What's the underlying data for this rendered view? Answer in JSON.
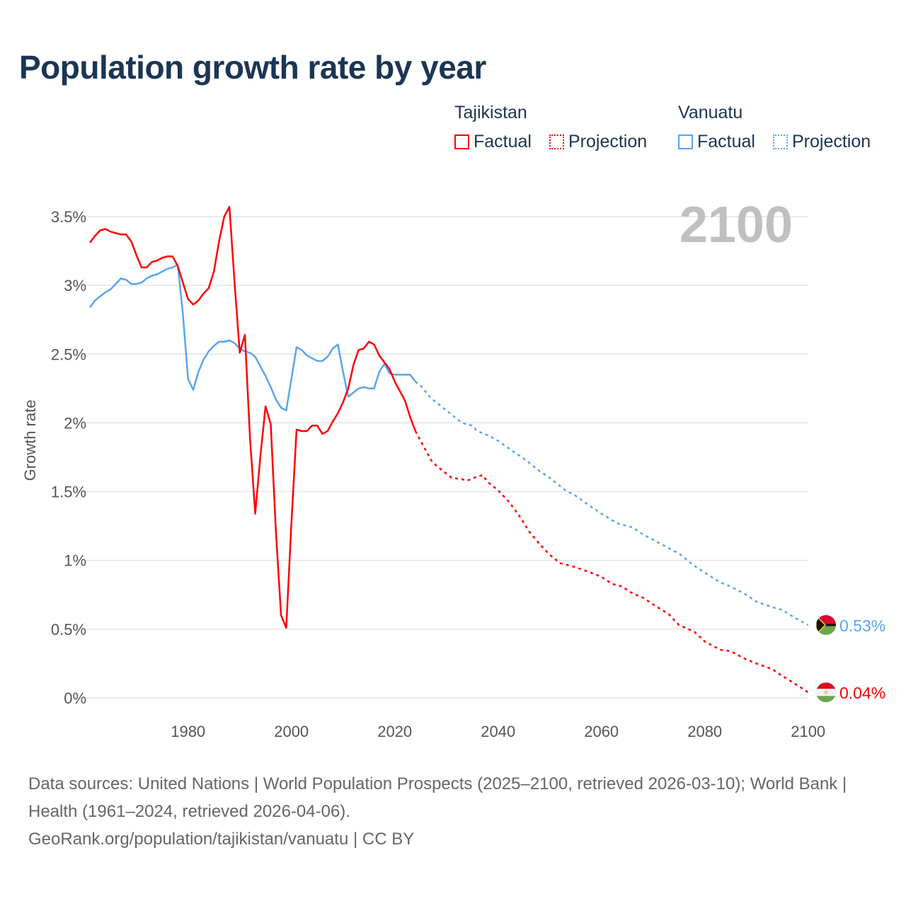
{
  "title": "Population growth rate by year",
  "legend": {
    "groups": [
      {
        "country": "Tajikistan",
        "factual": "Factual",
        "projection": "Projection",
        "color": "#ff0000"
      },
      {
        "country": "Vanuatu",
        "factual": "Factual",
        "projection": "Projection",
        "color": "#5aa5ec"
      }
    ]
  },
  "year_label": "2100",
  "footer": {
    "sources": "Data sources: United Nations | World Population Prospects (2025–2100, retrieved 2026-03-10); World Bank | Health (1961–2024, retrieved 2026-04-06).",
    "link": "GeoRank.org/population/tajikistan/vanuatu | CC BY"
  },
  "chart_data": {
    "type": "line",
    "title": "Population growth rate by year",
    "xlabel": "",
    "ylabel": "Growth rate",
    "xlim": [
      1961,
      2100
    ],
    "ylim": [
      0,
      3.5
    ],
    "x_ticks": [
      1980,
      2000,
      2020,
      2040,
      2060,
      2080,
      2100
    ],
    "x_tick_labels": [
      "1980",
      "2000",
      "2020",
      "2040",
      "2060",
      "2080",
      "2100"
    ],
    "y_ticks": [
      0,
      0.5,
      1,
      1.5,
      2,
      2.5,
      3,
      3.5
    ],
    "y_tick_labels": [
      "0%",
      "0.5%",
      "1%",
      "1.5%",
      "2%",
      "2.5%",
      "3%",
      "3.5%"
    ],
    "grid": true,
    "legend_position": "top-right",
    "series": [
      {
        "name": "Tajikistan",
        "color": "#ff0000",
        "end_label": "0.04%",
        "factual_start_year": 1961,
        "factual": [
          3.31,
          3.36,
          3.4,
          3.41,
          3.39,
          3.38,
          3.37,
          3.37,
          3.32,
          3.22,
          3.13,
          3.13,
          3.17,
          3.18,
          3.2,
          3.21,
          3.21,
          3.14,
          3.02,
          2.9,
          2.86,
          2.89,
          2.94,
          2.98,
          3.1,
          3.32,
          3.5,
          3.57,
          3.02,
          2.51,
          2.64,
          1.88,
          1.34,
          1.76,
          2.12,
          1.99,
          1.21,
          0.6,
          0.51,
          1.27,
          1.95,
          1.94,
          1.94,
          1.98,
          1.98,
          1.92,
          1.94,
          2.01,
          2.07,
          2.15,
          2.25,
          2.42,
          2.53,
          2.54,
          2.59,
          2.57,
          2.49,
          2.44,
          2.39,
          2.3,
          2.23,
          2.16,
          2.04,
          1.94
        ],
        "projection": [
          [
            2024,
            1.94
          ],
          [
            2025,
            1.87
          ],
          [
            2026,
            1.8
          ],
          [
            2027,
            1.73
          ],
          [
            2028,
            1.69
          ],
          [
            2029,
            1.66
          ],
          [
            2030,
            1.63
          ],
          [
            2031,
            1.6
          ],
          [
            2033,
            1.59
          ],
          [
            2034,
            1.58
          ],
          [
            2036,
            1.61
          ],
          [
            2037,
            1.62
          ],
          [
            2038,
            1.57
          ],
          [
            2040,
            1.51
          ],
          [
            2042,
            1.43
          ],
          [
            2044,
            1.33
          ],
          [
            2046,
            1.21
          ],
          [
            2048,
            1.12
          ],
          [
            2050,
            1.04
          ],
          [
            2052,
            0.98
          ],
          [
            2055,
            0.95
          ],
          [
            2058,
            0.91
          ],
          [
            2060,
            0.88
          ],
          [
            2062,
            0.83
          ],
          [
            2064,
            0.81
          ],
          [
            2066,
            0.76
          ],
          [
            2068,
            0.73
          ],
          [
            2070,
            0.68
          ],
          [
            2073,
            0.61
          ],
          [
            2075,
            0.53
          ],
          [
            2078,
            0.48
          ],
          [
            2080,
            0.41
          ],
          [
            2083,
            0.35
          ],
          [
            2085,
            0.34
          ],
          [
            2088,
            0.28
          ],
          [
            2090,
            0.25
          ],
          [
            2093,
            0.21
          ],
          [
            2095,
            0.16
          ],
          [
            2098,
            0.09
          ],
          [
            2100,
            0.04
          ]
        ]
      },
      {
        "name": "Vanuatu",
        "color": "#5aa5ec",
        "end_label": "0.53%",
        "factual_start_year": 1961,
        "factual": [
          2.84,
          2.89,
          2.92,
          2.95,
          2.97,
          3.01,
          3.05,
          3.04,
          3.01,
          3.01,
          3.02,
          3.05,
          3.07,
          3.08,
          3.1,
          3.12,
          3.13,
          3.15,
          2.79,
          2.32,
          2.24,
          2.37,
          2.46,
          2.52,
          2.56,
          2.59,
          2.59,
          2.6,
          2.58,
          2.54,
          2.52,
          2.51,
          2.48,
          2.41,
          2.34,
          2.26,
          2.17,
          2.11,
          2.09,
          2.32,
          2.55,
          2.53,
          2.49,
          2.47,
          2.45,
          2.45,
          2.48,
          2.54,
          2.57,
          2.37,
          2.19,
          2.22,
          2.25,
          2.26,
          2.25,
          2.25,
          2.37,
          2.43,
          2.36,
          2.35,
          2.35,
          2.35,
          2.35,
          2.3
        ],
        "projection": [
          [
            2024,
            2.3
          ],
          [
            2025,
            2.27
          ],
          [
            2027,
            2.18
          ],
          [
            2030,
            2.09
          ],
          [
            2033,
            2.0
          ],
          [
            2035,
            1.98
          ],
          [
            2036,
            1.94
          ],
          [
            2038,
            1.91
          ],
          [
            2040,
            1.87
          ],
          [
            2043,
            1.79
          ],
          [
            2045,
            1.74
          ],
          [
            2048,
            1.65
          ],
          [
            2050,
            1.6
          ],
          [
            2053,
            1.51
          ],
          [
            2055,
            1.47
          ],
          [
            2058,
            1.39
          ],
          [
            2060,
            1.34
          ],
          [
            2063,
            1.27
          ],
          [
            2066,
            1.24
          ],
          [
            2068,
            1.19
          ],
          [
            2070,
            1.15
          ],
          [
            2073,
            1.09
          ],
          [
            2075,
            1.05
          ],
          [
            2078,
            0.96
          ],
          [
            2080,
            0.91
          ],
          [
            2083,
            0.84
          ],
          [
            2085,
            0.81
          ],
          [
            2088,
            0.75
          ],
          [
            2090,
            0.7
          ],
          [
            2093,
            0.66
          ],
          [
            2095,
            0.64
          ],
          [
            2098,
            0.57
          ],
          [
            2100,
            0.53
          ]
        ]
      }
    ]
  }
}
